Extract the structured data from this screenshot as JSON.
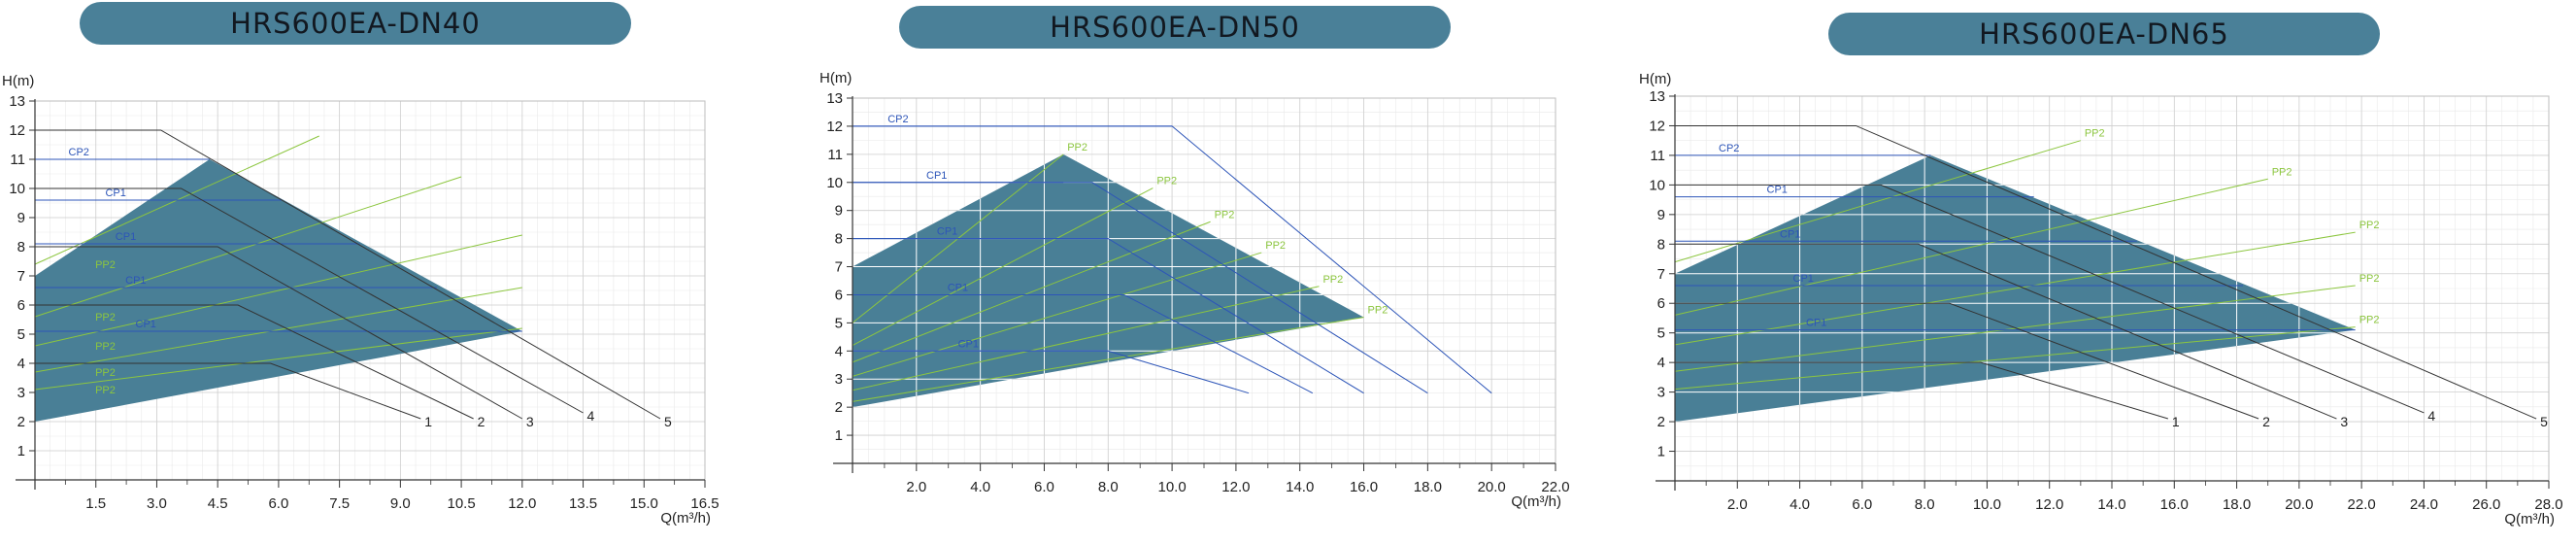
{
  "colors": {
    "title_bg": "#4a8098",
    "area_fill": "#497f96",
    "grid_minor": "#e9e9e9",
    "grid_major": "#cfcfcf",
    "cp_line": "#2d55b8",
    "pp_line": "#8cc63f",
    "curve_line": "#333333",
    "axis": "#333333"
  },
  "chart_data": [
    {
      "type": "area",
      "title": "HRS600EA-DN40",
      "ylabel": "H(m)",
      "xlabel": "Q(m³/h)",
      "xlim": [
        0,
        16.5
      ],
      "ylim": [
        0,
        13
      ],
      "xticks": [
        "1.5",
        "3.0",
        "4.5",
        "6.0",
        "7.5",
        "9.0",
        "10.5",
        "12.0",
        "13.5",
        "15.0",
        "16.5"
      ],
      "yticks": [
        "1",
        "2",
        "3",
        "4",
        "5",
        "6",
        "7",
        "8",
        "9",
        "10",
        "11",
        "12",
        "13"
      ],
      "inner_grid": false,
      "operating_region": [
        [
          0,
          2
        ],
        [
          0,
          7
        ],
        [
          4.3,
          11
        ],
        [
          12,
          5.1
        ]
      ],
      "curves": [
        {
          "name": "1",
          "points": [
            [
              0,
              4
            ],
            [
              5.8,
              4
            ],
            [
              9.5,
              2.1
            ]
          ]
        },
        {
          "name": "2",
          "points": [
            [
              0,
              6
            ],
            [
              5,
              6
            ],
            [
              10.8,
              2.1
            ]
          ]
        },
        {
          "name": "3",
          "points": [
            [
              0,
              8
            ],
            [
              4.5,
              8
            ],
            [
              12,
              2.1
            ]
          ]
        },
        {
          "name": "4",
          "points": [
            [
              0,
              10
            ],
            [
              3.6,
              10
            ],
            [
              13.5,
              2.3
            ]
          ]
        },
        {
          "name": "5",
          "points": [
            [
              0,
              12
            ],
            [
              3.1,
              12
            ],
            [
              15.4,
              2.1
            ]
          ]
        }
      ],
      "cp_lines": [
        {
          "name": "CP2",
          "h": 11,
          "q_end": 4.3
        },
        {
          "name": "CP1",
          "h": 9.6,
          "q_end": 6.1
        },
        {
          "name": "CP1",
          "h": 8.1,
          "q_end": 8
        },
        {
          "name": "CP1",
          "h": 6.6,
          "q_end": 9.9
        },
        {
          "name": "CP1",
          "h": 5.1,
          "q_end": 12
        }
      ],
      "pp_lines": [
        {
          "name": "PP2",
          "from": [
            0,
            7.4
          ],
          "to": [
            7,
            11.8
          ]
        },
        {
          "name": "PP2",
          "from": [
            0,
            5.6
          ],
          "to": [
            10.5,
            10.4
          ]
        },
        {
          "name": "PP2",
          "from": [
            0,
            4.6
          ],
          "to": [
            12,
            8.4
          ]
        },
        {
          "name": "PP2",
          "from": [
            0,
            3.7
          ],
          "to": [
            12,
            6.6
          ]
        },
        {
          "name": "PP2",
          "from": [
            0,
            3.1
          ],
          "to": [
            12,
            5.2
          ]
        }
      ]
    },
    {
      "type": "area",
      "title": "HRS600EA-DN50",
      "ylabel": "H(m)",
      "xlabel": "Q(m³/h)",
      "xlim": [
        0,
        22
      ],
      "ylim": [
        0,
        13
      ],
      "xticks": [
        "2.0",
        "4.0",
        "6.0",
        "8.0",
        "10.0",
        "12.0",
        "14.0",
        "16.0",
        "18.0",
        "20.0",
        "22.0"
      ],
      "yticks": [
        "1",
        "2",
        "3",
        "4",
        "5",
        "6",
        "7",
        "8",
        "9",
        "10",
        "11",
        "12",
        "13"
      ],
      "inner_grid": true,
      "operating_region": [
        [
          0,
          2
        ],
        [
          0,
          7
        ],
        [
          6.6,
          11
        ],
        [
          16,
          5.2
        ]
      ],
      "curves": [
        {
          "name": "",
          "points": [
            [
              0,
              12
            ],
            [
              10,
              12
            ],
            [
              20,
              2.5
            ]
          ]
        },
        {
          "name": "",
          "points": [
            [
              0,
              10
            ],
            [
              7.5,
              10
            ],
            [
              18,
              2.5
            ]
          ]
        },
        {
          "name": "",
          "points": [
            [
              0,
              8
            ],
            [
              8,
              8
            ],
            [
              16,
              2.5
            ]
          ]
        },
        {
          "name": "",
          "points": [
            [
              0,
              6
            ],
            [
              8.5,
              6
            ],
            [
              14.4,
              2.5
            ]
          ]
        },
        {
          "name": "",
          "points": [
            [
              0,
              4
            ],
            [
              8,
              4
            ],
            [
              12.4,
              2.5
            ]
          ]
        }
      ],
      "cp_lines": [
        {
          "name": "CP2",
          "h": 12,
          "q_end": 10
        },
        {
          "name": "CP1",
          "h": 10,
          "q_end": 6.6
        },
        {
          "name": "CP1",
          "h": 8,
          "q_end": 8
        },
        {
          "name": "CP1",
          "h": 6,
          "q_end": 8.5
        },
        {
          "name": "CP1",
          "h": 4,
          "q_end": 8
        }
      ],
      "pp_lines": [
        {
          "name": "PP2",
          "from": [
            0,
            5
          ],
          "to": [
            6.6,
            11
          ]
        },
        {
          "name": "PP2",
          "from": [
            0,
            4.2
          ],
          "to": [
            9.4,
            9.8
          ]
        },
        {
          "name": "PP2",
          "from": [
            0,
            3.6
          ],
          "to": [
            11.2,
            8.6
          ]
        },
        {
          "name": "PP2",
          "from": [
            0,
            3.1
          ],
          "to": [
            12.8,
            7.5
          ]
        },
        {
          "name": "PP2",
          "from": [
            0,
            2.6
          ],
          "to": [
            14.6,
            6.3
          ]
        },
        {
          "name": "PP2",
          "from": [
            0,
            2.2
          ],
          "to": [
            16,
            5.2
          ]
        }
      ]
    },
    {
      "type": "area",
      "title": "HRS600EA-DN65",
      "ylabel": "H(m)",
      "xlabel": "Q(m³/h)",
      "xlim": [
        0,
        28
      ],
      "ylim": [
        0,
        13
      ],
      "xticks": [
        "2.0",
        "4.0",
        "6.0",
        "8.0",
        "10.0",
        "12.0",
        "14.0",
        "16.0",
        "18.0",
        "20.0",
        "22.0",
        "24.0",
        "26.0",
        "28.0"
      ],
      "yticks": [
        "1",
        "2",
        "3",
        "4",
        "5",
        "6",
        "7",
        "8",
        "9",
        "10",
        "11",
        "12",
        "13"
      ],
      "inner_grid": true,
      "operating_region": [
        [
          0,
          2
        ],
        [
          0,
          7
        ],
        [
          8.2,
          11
        ],
        [
          21.8,
          5.1
        ]
      ],
      "curves": [
        {
          "name": "1",
          "points": [
            [
              0,
              4
            ],
            [
              9.8,
              4
            ],
            [
              15.8,
              2.1
            ]
          ]
        },
        {
          "name": "2",
          "points": [
            [
              0,
              6
            ],
            [
              8.8,
              6
            ],
            [
              18.7,
              2.1
            ]
          ]
        },
        {
          "name": "3",
          "points": [
            [
              0,
              8
            ],
            [
              7.8,
              8
            ],
            [
              21.2,
              2.1
            ]
          ]
        },
        {
          "name": "4",
          "points": [
            [
              0,
              10
            ],
            [
              6.6,
              10
            ],
            [
              24,
              2.3
            ]
          ]
        },
        {
          "name": "5",
          "points": [
            [
              0,
              12
            ],
            [
              5.8,
              12
            ],
            [
              27.6,
              2.1
            ]
          ]
        }
      ],
      "cp_lines": [
        {
          "name": "CP2",
          "h": 11,
          "q_end": 8.2
        },
        {
          "name": "CP1",
          "h": 9.6,
          "q_end": 11.5
        },
        {
          "name": "CP1",
          "h": 8.1,
          "q_end": 14.8
        },
        {
          "name": "CP1",
          "h": 6.6,
          "q_end": 18.2
        },
        {
          "name": "CP1",
          "h": 5.1,
          "q_end": 21.8
        }
      ],
      "pp_lines": [
        {
          "name": "PP2",
          "from": [
            0,
            7.4
          ],
          "to": [
            13,
            11.5
          ]
        },
        {
          "name": "PP2",
          "from": [
            0,
            5.6
          ],
          "to": [
            19,
            10.2
          ]
        },
        {
          "name": "PP2",
          "from": [
            0,
            4.6
          ],
          "to": [
            21.8,
            8.4
          ]
        },
        {
          "name": "PP2",
          "from": [
            0,
            3.7
          ],
          "to": [
            21.8,
            6.6
          ]
        },
        {
          "name": "PP2",
          "from": [
            0,
            3.1
          ],
          "to": [
            21.8,
            5.2
          ]
        }
      ]
    }
  ]
}
